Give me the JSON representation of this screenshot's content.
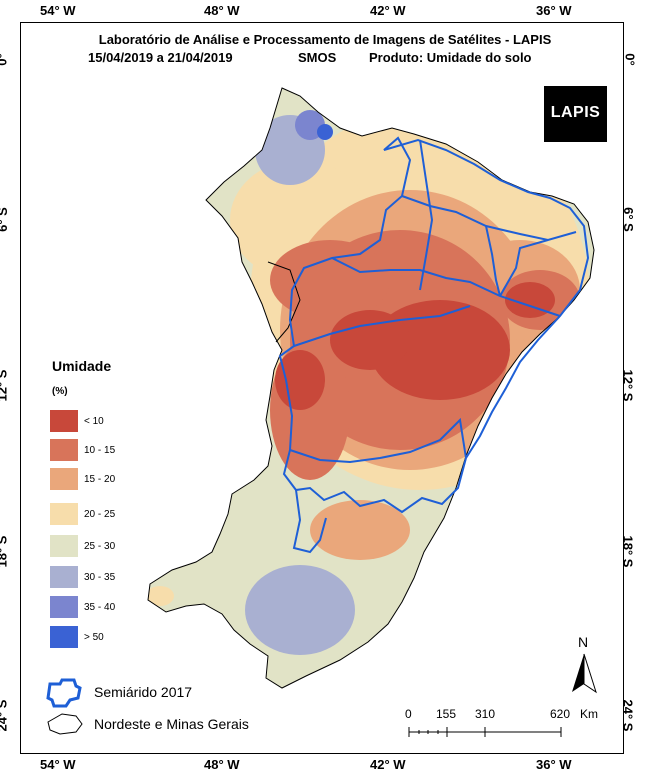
{
  "header": {
    "title": "Laboratório de Análise e Processamento de Imagens de Satélites - LAPIS",
    "period": "15/04/2019  a 21/04/2019",
    "sensor": "SMOS",
    "product": "Produto: Umidade do solo"
  },
  "logo": {
    "text": "LAPIS"
  },
  "graticule": {
    "longitudes": [
      "54° W",
      "48° W",
      "42° W",
      "36° W"
    ],
    "latitudes": [
      "0°",
      "6° S",
      "12° S",
      "18° S",
      "24° S"
    ]
  },
  "legend": {
    "title": "Umidade",
    "unit": "(%)",
    "classes": [
      {
        "label": "< 10",
        "color": "#c8483a"
      },
      {
        "label": "10 - 15",
        "color": "#d8745a"
      },
      {
        "label": "15 - 20",
        "color": "#eaa77b"
      },
      {
        "label": "20 - 25",
        "color": "#f7ddab"
      },
      {
        "label": "25 - 30",
        "color": "#e1e3c6"
      },
      {
        "label": "30 - 35",
        "color": "#a9b0d1"
      },
      {
        "label": "35 - 40",
        "color": "#7b85cf"
      },
      {
        "label": "> 50",
        "color": "#3a62d4"
      }
    ],
    "semiarido_label": "Semiárido 2017",
    "region_label": "Nordeste e Minas Gerais"
  },
  "scale_bar": {
    "labels": [
      "0",
      "155",
      "310",
      "620"
    ],
    "unit": "Km"
  },
  "north_arrow": {
    "label": "N"
  },
  "colors": {
    "boundary": "#1e5fd6",
    "outline": "#000000"
  }
}
